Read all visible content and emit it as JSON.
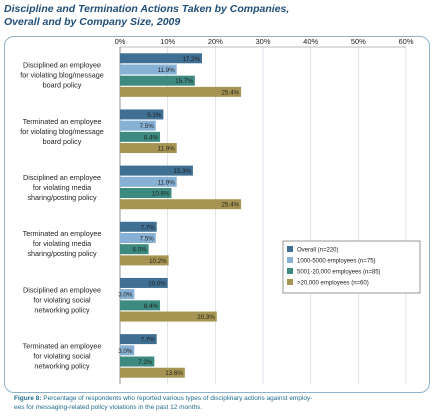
{
  "title_line1": "Discipline and Termination Actions Taken by Companies,",
  "title_line2": "Overall and by Company Size, 2009",
  "caption_fig": "Figure 8:",
  "caption_line1_rest": " Percentage of respondents who reported various types of disciplinary actions against employ-",
  "caption_line2": "ees for messaging-related policy violations in the past 12 months.",
  "chart_data": {
    "type": "bar",
    "orientation": "horizontal",
    "xlim": [
      0,
      60
    ],
    "ticks": [
      "0%",
      "10%",
      "20%",
      "30%",
      "40%",
      "50%",
      "60%"
    ],
    "grid": true,
    "legend_position": "right",
    "categories": [
      [
        "Disciplined an employee",
        "for violating blog/message",
        "board policy"
      ],
      [
        "Terminated an employee",
        "for violating blog/message",
        "board policy"
      ],
      [
        "Disciplined an employee",
        "for violating media",
        "sharing/posting policy"
      ],
      [
        "Terminated an employee",
        "for violating media",
        "sharing/posting policy"
      ],
      [
        "Disciplined an employee",
        "for violating social",
        "networking policy"
      ],
      [
        "Terminated an employee",
        "for violating social",
        "networking policy"
      ]
    ],
    "series": [
      {
        "name": "Overall (n=220)",
        "color": "#3f6f93",
        "values": [
          17.2,
          9.1,
          15.3,
          7.7,
          10.0,
          7.7
        ],
        "labels": [
          "17.2%",
          "9.1%",
          "15.3%",
          "7.7%",
          "10.0%",
          "7.7%"
        ]
      },
      {
        "name": "1000-5000 employees (n=75)",
        "color": "#86b0d4",
        "values": [
          11.9,
          7.5,
          11.9,
          7.5,
          3.0,
          3.0
        ],
        "labels": [
          "11.9%",
          "7.5%",
          "11.9%",
          "7.5%",
          "3.0%",
          "3.0%"
        ]
      },
      {
        "name": "5001-20,000 employees (n=85)",
        "color": "#3c8a80",
        "values": [
          15.7,
          8.4,
          10.8,
          6.0,
          8.4,
          7.2
        ],
        "labels": [
          "15.7%",
          "8.4%",
          "10.8%",
          "6.0%",
          "8.4%",
          "7.2%"
        ]
      },
      {
        "name": ">20,000 employees (n=60)",
        "color": "#a69552",
        "values": [
          25.4,
          11.9,
          25.4,
          10.2,
          20.3,
          13.6
        ],
        "labels": [
          "25.4%",
          "11.9%",
          "25.4%",
          "10.2%",
          "20.3%",
          "13.6%"
        ]
      }
    ]
  }
}
